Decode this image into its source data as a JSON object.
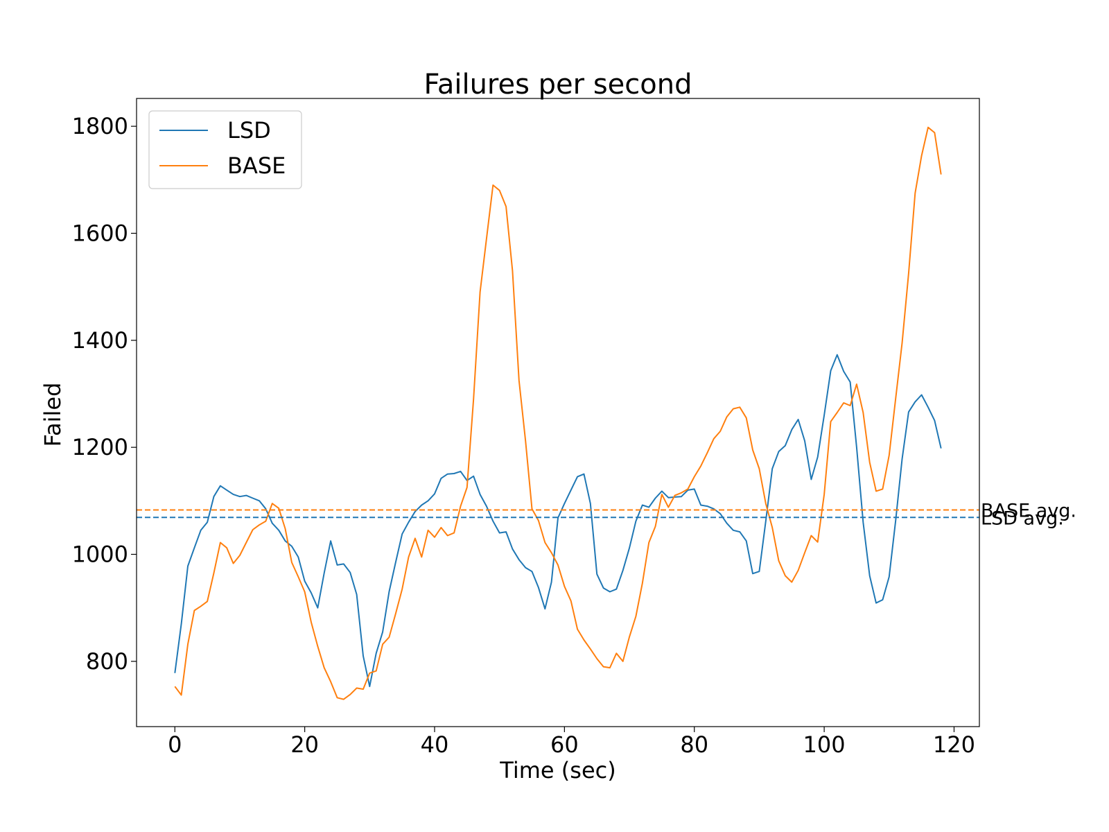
{
  "chart_data": {
    "type": "line",
    "title": "Failures per second",
    "xlabel": "Time (sec)",
    "ylabel": "Failed",
    "xlim": [
      -5.9,
      123.9
    ],
    "ylim": [
      678,
      1852
    ],
    "x_ticks": [
      0,
      20,
      40,
      60,
      80,
      100,
      120
    ],
    "y_ticks": [
      800,
      1000,
      1200,
      1400,
      1600,
      1800
    ],
    "grid": false,
    "legend_position": "upper-left",
    "series": [
      {
        "name": "LSD",
        "color": "#1f77b4",
        "x": [
          0,
          1,
          2,
          3,
          4,
          5,
          6,
          7,
          8,
          9,
          10,
          11,
          12,
          13,
          14,
          15,
          16,
          17,
          18,
          19,
          20,
          21,
          22,
          23,
          24,
          25,
          26,
          27,
          28,
          29,
          30,
          31,
          32,
          33,
          34,
          35,
          36,
          37,
          38,
          39,
          40,
          41,
          42,
          43,
          44,
          45,
          46,
          47,
          48,
          49,
          50,
          51,
          52,
          53,
          54,
          55,
          56,
          57,
          58,
          59,
          60,
          61,
          62,
          63,
          64,
          65,
          66,
          67,
          68,
          69,
          70,
          71,
          72,
          73,
          74,
          75,
          76,
          77,
          78,
          79,
          80,
          81,
          82,
          83,
          84,
          85,
          86,
          87,
          88,
          89,
          90,
          91,
          92,
          93,
          94,
          95,
          96,
          97,
          98,
          99,
          100,
          101,
          102,
          103,
          104,
          105,
          106,
          107,
          108,
          109,
          110,
          111,
          112,
          113,
          114,
          115,
          116,
          117,
          118
        ],
        "values": [
          778,
          870,
          978,
          1012,
          1045,
          1060,
          1108,
          1128,
          1120,
          1112,
          1108,
          1110,
          1105,
          1100,
          1085,
          1058,
          1045,
          1025,
          1015,
          995,
          950,
          928,
          900,
          965,
          1025,
          980,
          982,
          966,
          925,
          810,
          753,
          815,
          855,
          930,
          985,
          1038,
          1060,
          1080,
          1092,
          1100,
          1113,
          1142,
          1150,
          1151,
          1155,
          1138,
          1146,
          1112,
          1090,
          1062,
          1040,
          1042,
          1010,
          990,
          975,
          968,
          938,
          898,
          948,
          1068,
          1095,
          1120,
          1145,
          1150,
          1095,
          963,
          937,
          930,
          935,
          970,
          1012,
          1062,
          1092,
          1088,
          1105,
          1118,
          1106,
          1107,
          1108,
          1120,
          1122,
          1092,
          1090,
          1085,
          1076,
          1058,
          1045,
          1042,
          1025,
          964,
          968,
          1062,
          1160,
          1192,
          1203,
          1233,
          1252,
          1212,
          1140,
          1182,
          1260,
          1343,
          1373,
          1342,
          1322,
          1200,
          1060,
          960,
          909,
          915,
          958,
          1062,
          1178,
          1266,
          1285,
          1298,
          1275,
          1250,
          1198
        ]
      },
      {
        "name": "BASE",
        "color": "#ff7f0e",
        "x": [
          0,
          1,
          2,
          3,
          4,
          5,
          6,
          7,
          8,
          9,
          10,
          11,
          12,
          13,
          14,
          15,
          16,
          17,
          18,
          19,
          20,
          21,
          22,
          23,
          24,
          25,
          26,
          27,
          28,
          29,
          30,
          31,
          32,
          33,
          34,
          35,
          36,
          37,
          38,
          39,
          40,
          41,
          42,
          43,
          44,
          45,
          46,
          47,
          48,
          49,
          50,
          51,
          52,
          53,
          54,
          55,
          56,
          57,
          58,
          59,
          60,
          61,
          62,
          63,
          64,
          65,
          66,
          67,
          68,
          69,
          70,
          71,
          72,
          73,
          74,
          75,
          76,
          77,
          78,
          79,
          80,
          81,
          82,
          83,
          84,
          85,
          86,
          87,
          88,
          89,
          90,
          91,
          92,
          93,
          94,
          95,
          96,
          97,
          98,
          99,
          100,
          101,
          102,
          103,
          104,
          105,
          106,
          107,
          108,
          109,
          110,
          111,
          112,
          113,
          114,
          115,
          116,
          117,
          118
        ],
        "values": [
          753,
          737,
          832,
          895,
          903,
          912,
          965,
          1022,
          1012,
          983,
          998,
          1022,
          1046,
          1055,
          1062,
          1095,
          1086,
          1048,
          985,
          958,
          930,
          873,
          828,
          788,
          762,
          732,
          729,
          738,
          750,
          748,
          778,
          782,
          832,
          845,
          889,
          935,
          995,
          1030,
          995,
          1045,
          1032,
          1050,
          1035,
          1040,
          1090,
          1125,
          1290,
          1490,
          1590,
          1690,
          1680,
          1650,
          1530,
          1325,
          1212,
          1085,
          1063,
          1022,
          1003,
          980,
          940,
          913,
          860,
          840,
          823,
          805,
          790,
          788,
          815,
          800,
          846,
          884,
          946,
          1022,
          1052,
          1112,
          1088,
          1110,
          1115,
          1122,
          1145,
          1165,
          1190,
          1216,
          1230,
          1257,
          1272,
          1275,
          1255,
          1195,
          1160,
          1095,
          1050,
          988,
          960,
          948,
          970,
          1003,
          1035,
          1023,
          1112,
          1248,
          1265,
          1283,
          1278,
          1318,
          1265,
          1172,
          1118,
          1122,
          1185,
          1290,
          1395,
          1525,
          1675,
          1745,
          1798,
          1788,
          1710
        ]
      }
    ],
    "reference_lines": [
      {
        "label": "BASE avg.",
        "value": 1083,
        "color": "#ff7f0e",
        "style": "dashed"
      },
      {
        "label": "LSD avg.",
        "value": 1069,
        "color": "#1f77b4",
        "style": "dashed"
      }
    ]
  }
}
